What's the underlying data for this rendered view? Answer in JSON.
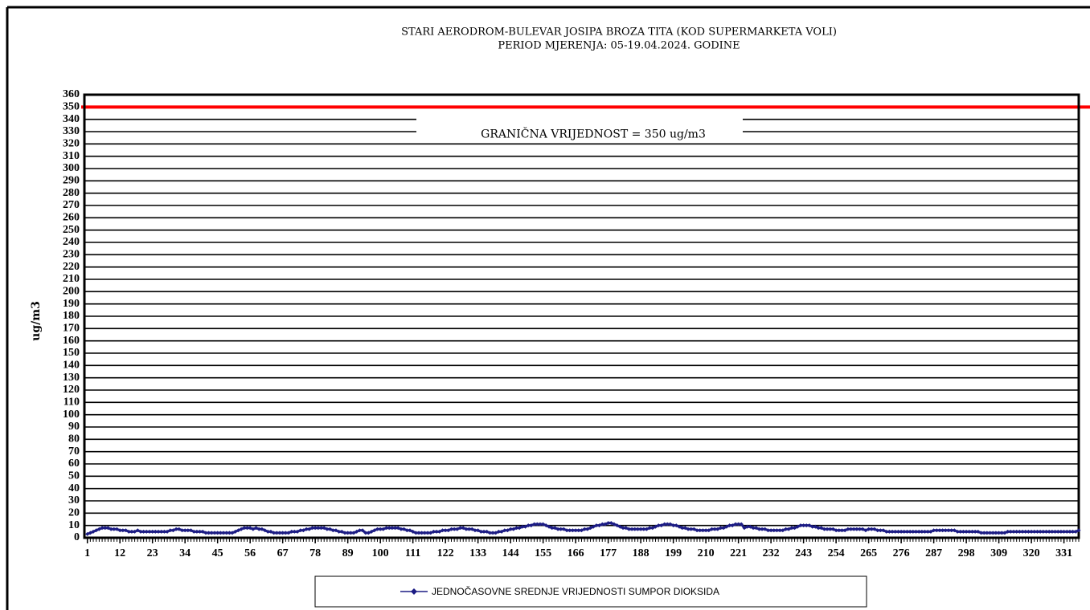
{
  "chart_data": {
    "type": "line",
    "title": "STARI AERODROM-BULEVAR  JOSIPA BROZA TITA (KOD SUPERMARKETA  VOLI)",
    "subtitle": "PERIOD MJERENJA:  05-19.04.2024.  GODINE",
    "y_label": "ug/m3",
    "limit": {
      "value": 350,
      "label": "GRANIČNA VRIJEDNOST = 350 ug/m3",
      "color": "#ff0000"
    },
    "x": [
      1,
      2,
      3,
      4,
      5,
      6,
      7,
      8,
      9,
      10,
      11,
      12,
      13,
      14,
      15,
      16,
      17,
      18,
      19,
      20,
      21,
      22,
      23,
      24,
      25,
      26,
      27,
      28,
      29,
      30,
      31,
      32,
      33,
      34,
      35,
      36,
      37,
      38,
      39,
      40,
      41,
      42,
      43,
      44,
      45,
      46,
      47,
      48,
      49,
      50,
      51,
      52,
      53,
      54,
      55,
      56,
      57,
      58,
      59,
      60,
      61,
      62,
      63,
      64,
      65,
      66,
      67,
      68,
      69,
      70,
      71,
      72,
      73,
      74,
      75,
      76,
      77,
      78,
      79,
      80,
      81,
      82,
      83,
      84,
      85,
      86,
      87,
      88,
      89,
      90,
      91,
      92,
      93,
      94,
      95,
      96,
      97,
      98,
      99,
      100,
      101,
      102,
      103,
      104,
      105,
      106,
      107,
      108,
      109,
      110,
      111,
      112,
      113,
      114,
      115,
      116,
      117,
      118,
      119,
      120,
      121,
      122,
      123,
      124,
      125,
      126,
      127,
      128,
      129,
      130,
      131,
      132,
      133,
      134,
      135,
      136,
      137,
      138,
      139,
      140,
      141,
      142,
      143,
      144,
      145,
      146,
      147,
      148,
      149,
      150,
      151,
      152,
      153,
      154,
      155,
      156,
      157,
      158,
      159,
      160,
      161,
      162,
      163,
      164,
      165,
      166,
      167,
      168,
      169,
      170,
      171,
      172,
      173,
      174,
      175,
      176,
      177,
      178,
      179,
      180,
      181,
      182,
      183,
      184,
      185,
      186,
      187,
      188,
      189,
      190,
      191,
      192,
      193,
      194,
      195,
      196,
      197,
      198,
      199,
      200,
      201,
      202,
      203,
      204,
      205,
      206,
      207,
      208,
      209,
      210,
      211,
      212,
      213,
      214,
      215,
      216,
      217,
      218,
      219,
      220,
      221,
      222,
      223,
      224,
      225,
      226,
      227,
      228,
      229,
      230,
      231,
      232,
      233,
      234,
      235,
      236,
      237,
      238,
      239,
      240,
      241,
      242,
      243,
      244,
      245,
      246,
      247,
      248,
      249,
      250,
      251,
      252,
      253,
      254,
      255,
      256,
      257,
      258,
      259,
      260,
      261,
      262,
      263,
      264,
      265,
      266,
      267,
      268,
      269,
      270,
      271,
      272,
      273,
      274,
      275,
      276,
      277,
      278,
      279,
      280,
      281,
      282,
      283,
      284,
      285,
      286,
      287,
      288,
      289,
      290,
      291,
      292,
      293,
      294,
      295,
      296,
      297,
      298,
      299,
      300,
      301,
      302,
      303,
      304,
      305,
      306,
      307,
      308,
      309,
      310,
      311,
      312,
      313,
      314,
      315,
      316,
      317,
      318,
      319,
      320,
      321,
      322,
      323,
      324,
      325,
      326,
      327,
      328,
      329,
      330,
      331,
      332,
      333,
      334,
      335,
      336
    ],
    "series": [
      {
        "name": "JEDNOČASOVNE SREDNJE VRIJEDNOSTI SUMPOR DIOKSIDA",
        "color": "#1c1c84",
        "values": [
          3,
          4,
          5,
          6,
          7,
          8,
          8,
          8,
          7,
          7,
          7,
          6,
          6,
          6,
          5,
          5,
          5,
          6,
          5,
          5,
          5,
          5,
          5,
          5,
          5,
          5,
          5,
          5,
          6,
          6,
          7,
          7,
          6,
          6,
          6,
          6,
          5,
          5,
          5,
          5,
          4,
          4,
          4,
          4,
          4,
          4,
          4,
          4,
          4,
          4,
          5,
          6,
          7,
          8,
          8,
          8,
          7,
          8,
          7,
          7,
          6,
          5,
          5,
          4,
          4,
          4,
          4,
          4,
          4,
          5,
          5,
          5,
          6,
          6,
          7,
          7,
          8,
          8,
          8,
          8,
          8,
          7,
          7,
          6,
          6,
          5,
          5,
          4,
          4,
          4,
          4,
          5,
          6,
          6,
          4,
          4,
          5,
          6,
          7,
          7,
          7,
          8,
          8,
          8,
          8,
          8,
          7,
          7,
          6,
          6,
          5,
          4,
          4,
          4,
          4,
          4,
          4,
          5,
          5,
          5,
          6,
          6,
          6,
          7,
          7,
          7,
          8,
          8,
          7,
          7,
          7,
          6,
          6,
          5,
          5,
          5,
          4,
          4,
          4,
          5,
          5,
          6,
          6,
          7,
          7,
          8,
          8,
          9,
          9,
          10,
          10,
          11,
          11,
          11,
          11,
          10,
          9,
          8,
          8,
          7,
          7,
          7,
          6,
          6,
          6,
          6,
          6,
          6,
          7,
          7,
          8,
          9,
          10,
          10,
          11,
          11,
          12,
          12,
          11,
          10,
          9,
          8,
          8,
          7,
          7,
          7,
          7,
          7,
          7,
          7,
          8,
          8,
          9,
          10,
          10,
          11,
          11,
          11,
          10,
          10,
          9,
          8,
          8,
          7,
          7,
          7,
          6,
          6,
          6,
          6,
          6,
          7,
          7,
          7,
          8,
          8,
          9,
          10,
          10,
          11,
          11,
          11,
          8,
          9,
          9,
          8,
          8,
          7,
          7,
          7,
          6,
          6,
          6,
          6,
          6,
          6,
          7,
          7,
          8,
          8,
          9,
          10,
          10,
          10,
          10,
          9,
          9,
          8,
          8,
          7,
          7,
          7,
          7,
          6,
          6,
          6,
          6,
          7,
          7,
          7,
          7,
          7,
          7,
          6,
          7,
          7,
          7,
          6,
          6,
          6,
          5,
          5,
          5,
          5,
          5,
          5,
          5,
          5,
          5,
          5,
          5,
          5,
          5,
          5,
          5,
          5,
          6,
          6,
          6,
          6,
          6,
          6,
          6,
          6,
          5,
          5,
          5,
          5,
          5,
          5,
          5,
          5,
          4,
          4,
          4,
          4,
          4,
          4,
          4,
          4,
          4,
          5,
          5,
          5,
          5,
          5,
          5,
          5,
          5,
          5,
          5,
          5,
          5,
          5,
          5,
          5,
          5,
          5,
          5,
          5,
          5,
          5,
          5,
          5,
          5,
          6
        ]
      }
    ],
    "xlim": [
      0,
      336
    ],
    "xticks": [
      1,
      12,
      23,
      34,
      45,
      56,
      67,
      78,
      89,
      100,
      111,
      122,
      133,
      144,
      155,
      166,
      177,
      188,
      199,
      210,
      221,
      232,
      243,
      254,
      265,
      276,
      287,
      298,
      309,
      320,
      331
    ],
    "ylim": [
      0,
      360
    ],
    "yticks": [
      0,
      10,
      20,
      30,
      40,
      50,
      60,
      70,
      80,
      90,
      100,
      110,
      120,
      130,
      140,
      150,
      160,
      170,
      180,
      190,
      200,
      210,
      220,
      230,
      240,
      250,
      260,
      270,
      280,
      290,
      300,
      310,
      320,
      330,
      340,
      350,
      360
    ],
    "grid": true,
    "legend": "bottom"
  }
}
